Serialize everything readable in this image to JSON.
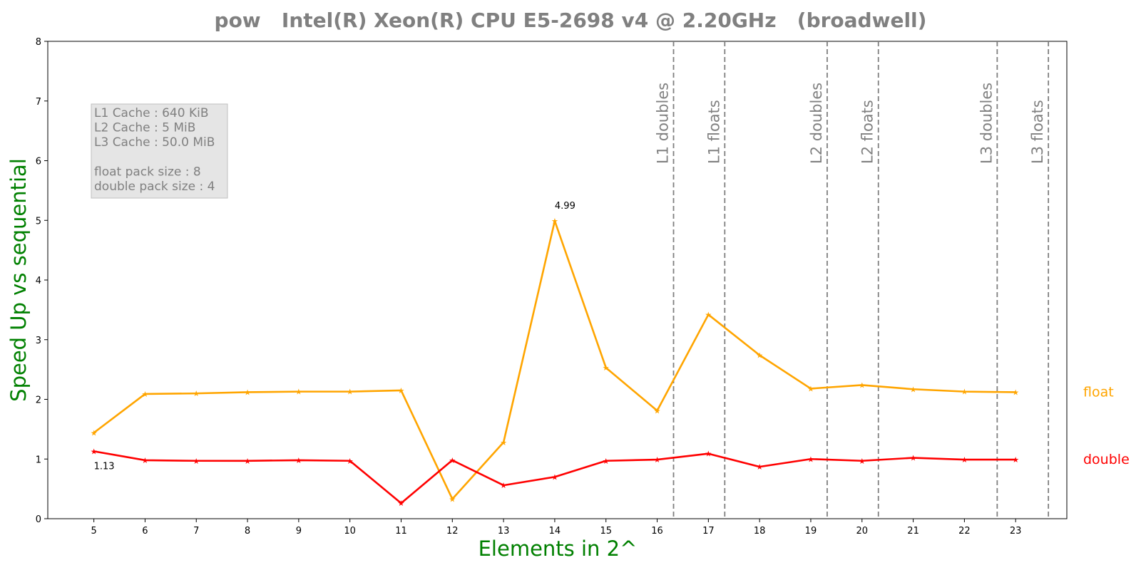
{
  "chart_data": {
    "type": "line",
    "title": "pow   Intel(R) Xeon(R) CPU E5-2698 v4 @ 2.20GHz   (broadwell)",
    "xlabel": "Elements in 2^",
    "ylabel": "Speed Up vs sequential",
    "xlim": [
      4.1,
      24.0
    ],
    "ylim": [
      0,
      8
    ],
    "x": [
      5,
      6,
      7,
      8,
      9,
      10,
      11,
      12,
      13,
      14,
      15,
      16,
      17,
      18,
      19,
      20,
      21,
      22,
      23
    ],
    "x_ticks": [
      5,
      6,
      7,
      8,
      9,
      10,
      11,
      12,
      13,
      14,
      15,
      16,
      17,
      18,
      19,
      20,
      21,
      22,
      23
    ],
    "y_ticks": [
      0,
      1,
      2,
      3,
      4,
      5,
      6,
      7,
      8
    ],
    "grid": false,
    "series": [
      {
        "name": "float",
        "color": "#FFA500",
        "values": [
          1.44,
          2.09,
          2.1,
          2.12,
          2.13,
          2.13,
          2.15,
          0.33,
          1.28,
          4.99,
          2.53,
          1.81,
          3.42,
          2.74,
          2.18,
          2.24,
          2.17,
          2.13,
          2.12
        ]
      },
      {
        "name": "double",
        "color": "#FF0000",
        "values": [
          1.13,
          0.98,
          0.97,
          0.97,
          0.98,
          0.97,
          0.26,
          0.98,
          0.56,
          0.7,
          0.97,
          0.99,
          1.09,
          0.87,
          1.0,
          0.97,
          1.02,
          0.99,
          0.99
        ]
      }
    ],
    "annotations": [
      {
        "text": "4.99",
        "x": 14,
        "y": 4.99
      },
      {
        "text": "1.13",
        "x": 5,
        "y": 1.13
      }
    ],
    "cache_lines": [
      {
        "label": "L1 doubles",
        "x": 16.32
      },
      {
        "label": "L1 floats",
        "x": 17.32
      },
      {
        "label": "L2 doubles",
        "x": 19.32
      },
      {
        "label": "L2 floats",
        "x": 20.32
      },
      {
        "label": "L3 doubles",
        "x": 22.64
      },
      {
        "label": "L3 floats",
        "x": 23.64
      }
    ],
    "info_box": {
      "lines": [
        "L1 Cache : 640 KiB",
        "L2 Cache : 5 MiB",
        "L3 Cache : 50.0 MiB",
        "",
        "float pack size : 8",
        "double pack size : 4"
      ]
    },
    "colors": {
      "title": "#808080",
      "axis_label": "#008000",
      "cache_line": "#808080",
      "info_box_bg": "#E5E5E5"
    }
  }
}
